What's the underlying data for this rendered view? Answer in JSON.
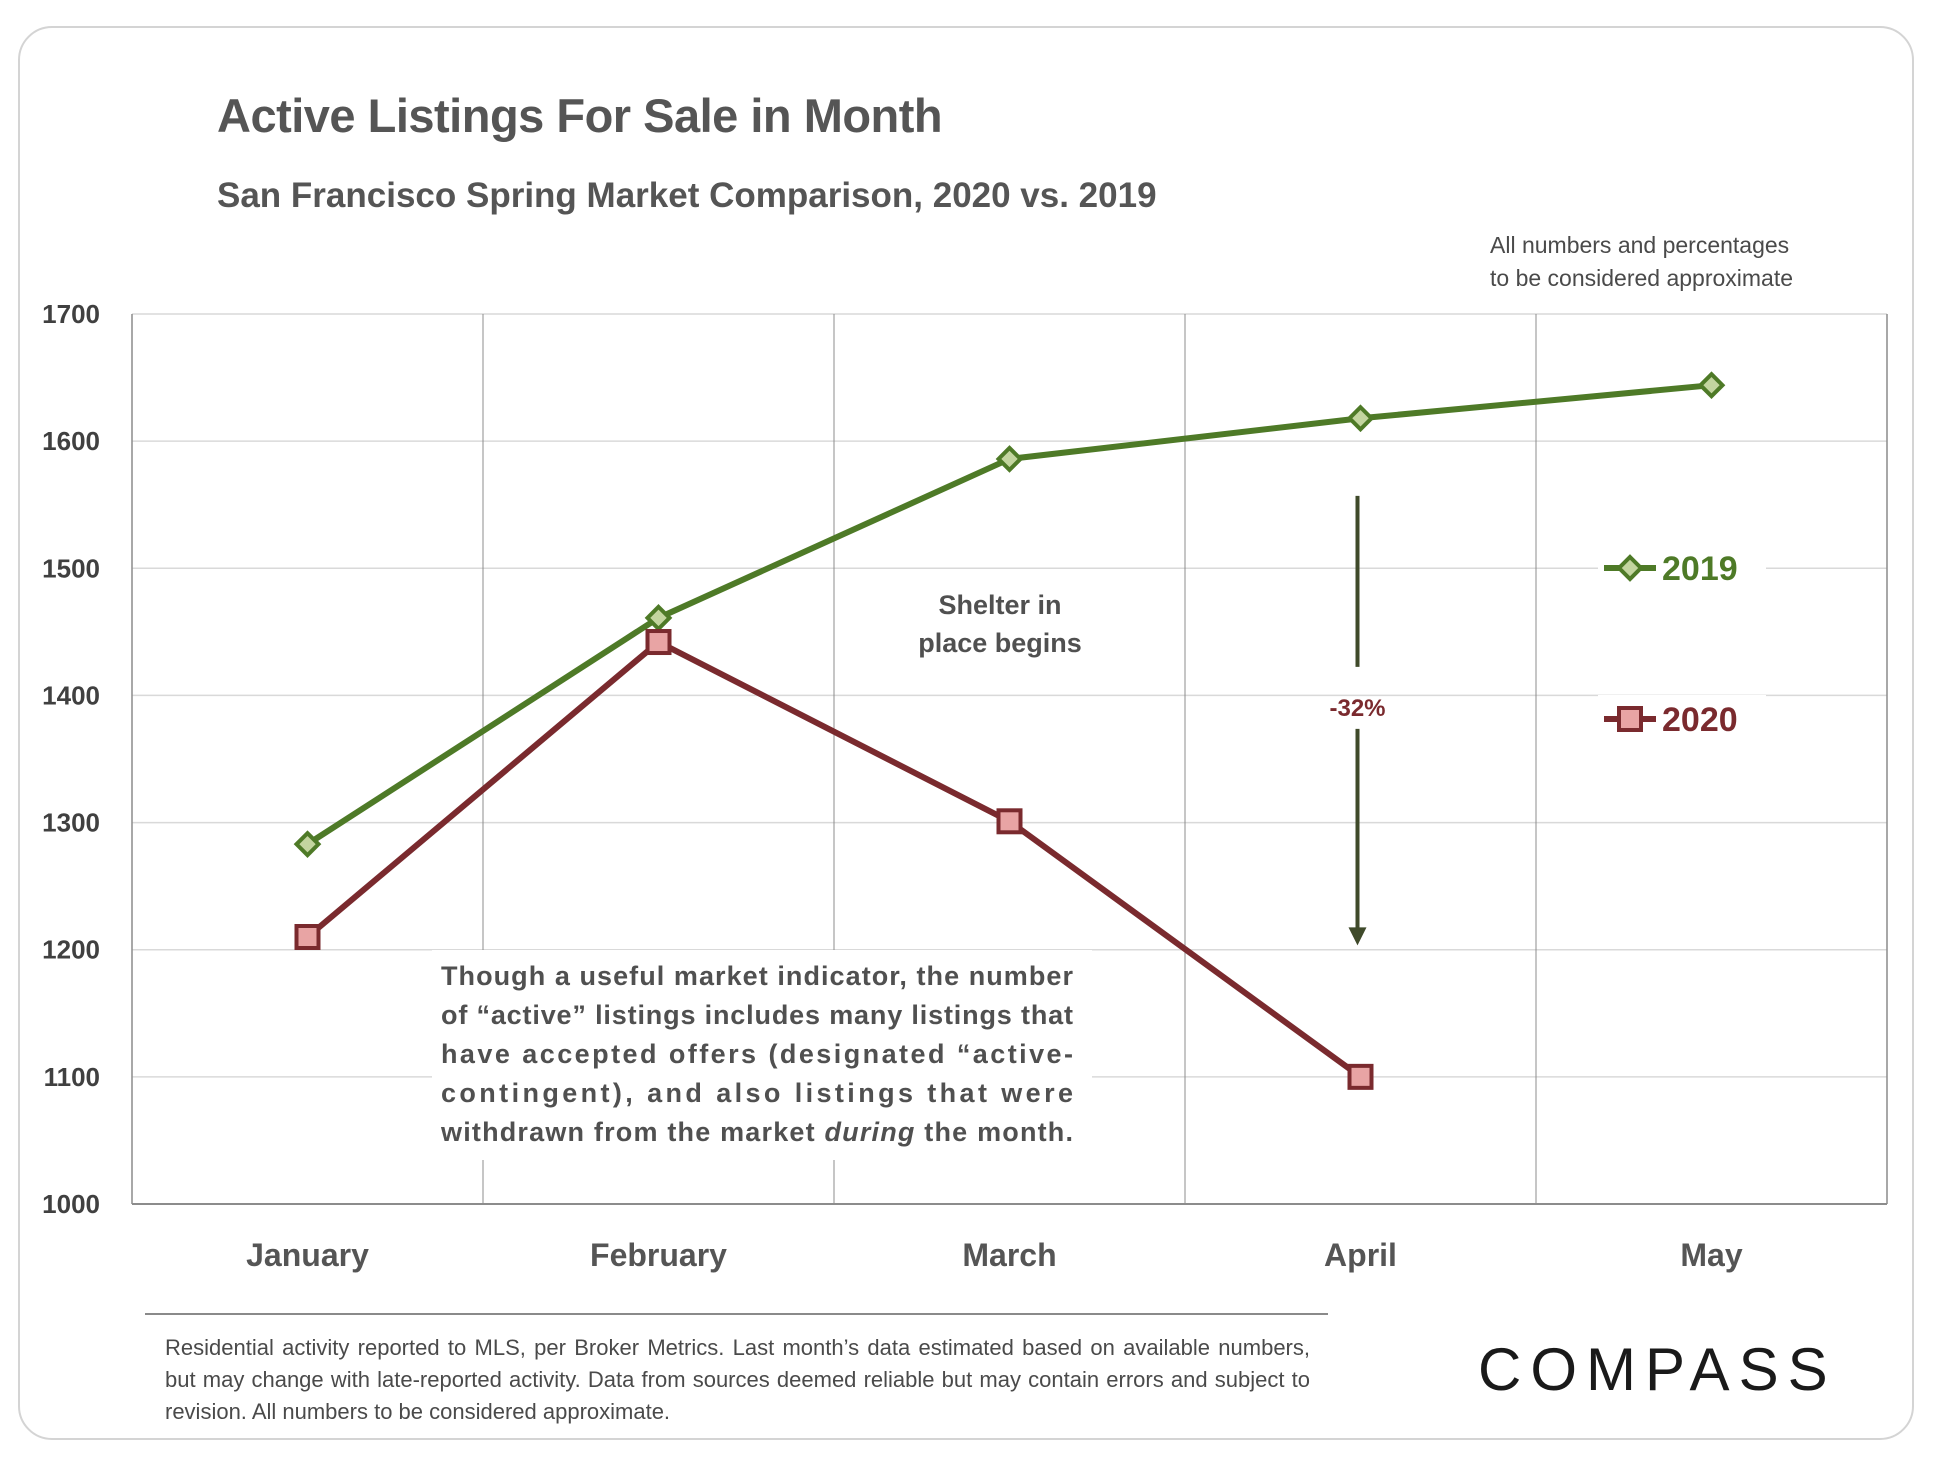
{
  "header": {
    "title": "Active Listings For Sale in Month",
    "subtitle": "San Francisco Spring Market Comparison,  2020 vs. 2019",
    "disclaimer_line1": "All numbers and percentages",
    "disclaimer_line2": "to be considered approximate"
  },
  "annotations": {
    "shelter_line1": "Shelter in",
    "shelter_line2": "place  begins",
    "change_label": "-32%",
    "info_lines": [
      "Though a useful market indicator, the number",
      "of “active” listings includes many listings that",
      "have  accepted  offers  (designated  “active-",
      "contingent),  and  also  listings  that  were",
      "withdrawn from the market during the month."
    ],
    "info_emphasis": "during"
  },
  "footer": {
    "source_note": "Residential activity reported to MLS, per Broker Metrics. Last month’s data estimated based on available numbers, but may change with late-reported activity. Data from sources deemed reliable but may contain errors and subject to revision. All numbers to be considered approximate.",
    "brand": "COMPASS"
  },
  "colors": {
    "series_2019": "#4e7a27",
    "series_2020": "#7a2a2e",
    "marker_2019_fill": "#c3d59f",
    "marker_2020_fill": "#e8a4a4",
    "arrow": "#3f4a2a",
    "grid": "#d9d9d9",
    "axis_text": "#404040"
  },
  "chart_data": {
    "type": "line",
    "categories": [
      "January",
      "February",
      "March",
      "April",
      "May"
    ],
    "ylim": [
      1000,
      1700
    ],
    "yticks": [
      1000,
      1100,
      1200,
      1300,
      1400,
      1500,
      1600,
      1700
    ],
    "grid": true,
    "legend_position": "right",
    "series": [
      {
        "name": "2019",
        "marker": "diamond",
        "values": [
          1283,
          1461,
          1586,
          1618,
          1644
        ]
      },
      {
        "name": "2020",
        "marker": "square",
        "values": [
          1210,
          1442,
          1301,
          1100,
          null
        ]
      }
    ],
    "change_annotation": {
      "category": "April",
      "from": 1557,
      "to": 1205
    }
  }
}
